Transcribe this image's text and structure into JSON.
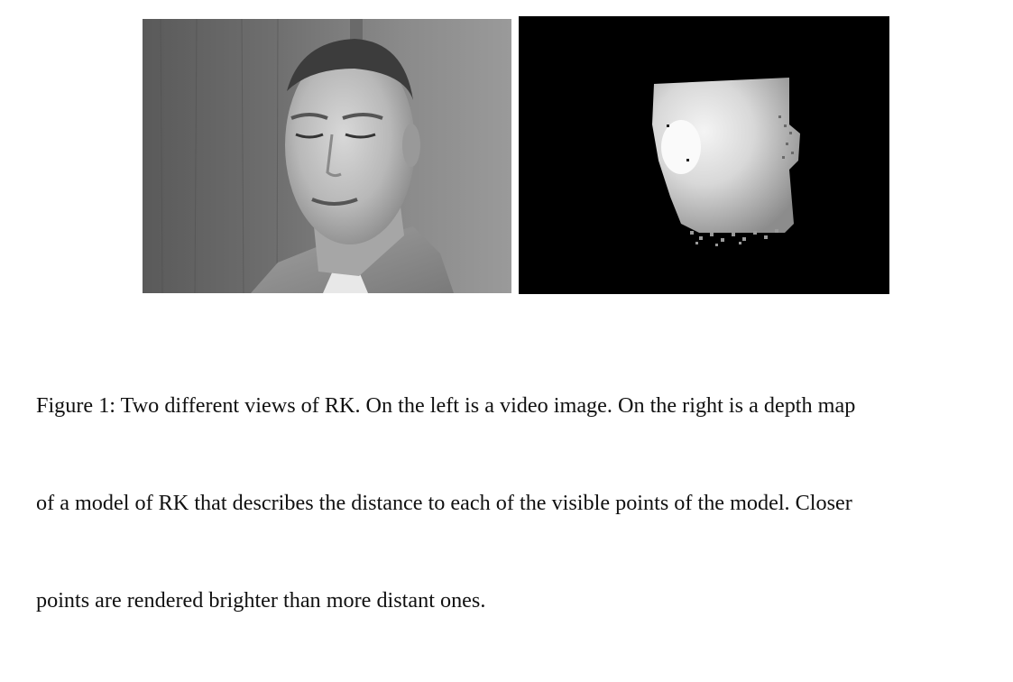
{
  "figure": {
    "left_image": {
      "description_icon": "grayscale-face-photo"
    },
    "right_image": {
      "description_icon": "face-depth-map"
    },
    "caption": {
      "lines": [
        "Figure 1: Two different views of  RK. On the left is a video image. On the right is a depth map",
        "of a model of  RK that describes the distance to each of the visible points of the model. Closer",
        "points are rendered brighter than more distant ones."
      ]
    }
  }
}
